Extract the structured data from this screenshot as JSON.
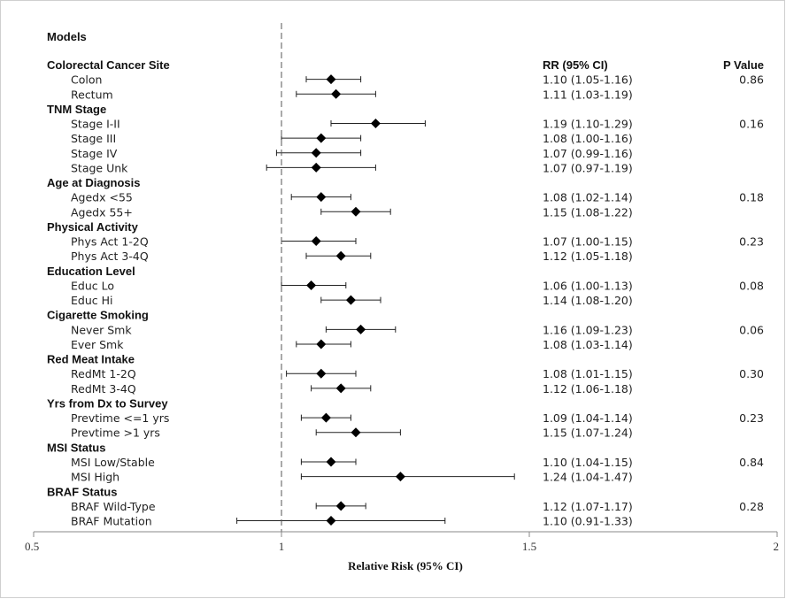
{
  "chart_data": {
    "type": "forest",
    "title": "Models",
    "xlabel": "Relative Risk (95% CI)",
    "xlim": [
      0.5,
      2
    ],
    "xticks": [
      "0.5",
      "1",
      "1.5",
      "2"
    ],
    "reference_line": 1,
    "col_rr_header": "RR (95% CI)",
    "col_p_header": "P Value",
    "groups": [
      {
        "name": "Colorectal Cancer Site",
        "p": "0.86",
        "rows": [
          {
            "label": "Colon",
            "rr": 1.1,
            "lo": 1.05,
            "hi": 1.16,
            "text": "1.10 (1.05-1.16)"
          },
          {
            "label": "Rectum",
            "rr": 1.11,
            "lo": 1.03,
            "hi": 1.19,
            "text": "1.11 (1.03-1.19)"
          }
        ]
      },
      {
        "name": "TNM Stage",
        "p": "0.16",
        "rows": [
          {
            "label": "Stage I-II",
            "rr": 1.19,
            "lo": 1.1,
            "hi": 1.29,
            "text": "1.19 (1.10-1.29)"
          },
          {
            "label": "Stage III",
            "rr": 1.08,
            "lo": 1.0,
            "hi": 1.16,
            "text": "1.08 (1.00-1.16)"
          },
          {
            "label": "Stage IV",
            "rr": 1.07,
            "lo": 0.99,
            "hi": 1.16,
            "text": "1.07 (0.99-1.16)"
          },
          {
            "label": "Stage Unk",
            "rr": 1.07,
            "lo": 0.97,
            "hi": 1.19,
            "text": "1.07 (0.97-1.19)"
          }
        ]
      },
      {
        "name": "Age at Diagnosis",
        "p": "0.18",
        "rows": [
          {
            "label": "Agedx <55",
            "rr": 1.08,
            "lo": 1.02,
            "hi": 1.14,
            "text": "1.08 (1.02-1.14)"
          },
          {
            "label": "Agedx 55+",
            "rr": 1.15,
            "lo": 1.08,
            "hi": 1.22,
            "text": "1.15 (1.08-1.22)"
          }
        ]
      },
      {
        "name": "Physical Activity",
        "p": "0.23",
        "rows": [
          {
            "label": "Phys Act 1-2Q",
            "rr": 1.07,
            "lo": 1.0,
            "hi": 1.15,
            "text": "1.07 (1.00-1.15)"
          },
          {
            "label": "Phys Act 3-4Q",
            "rr": 1.12,
            "lo": 1.05,
            "hi": 1.18,
            "text": "1.12 (1.05-1.18)"
          }
        ]
      },
      {
        "name": "Education Level",
        "p": "0.08",
        "rows": [
          {
            "label": "Educ Lo",
            "rr": 1.06,
            "lo": 1.0,
            "hi": 1.13,
            "text": "1.06 (1.00-1.13)"
          },
          {
            "label": "Educ Hi",
            "rr": 1.14,
            "lo": 1.08,
            "hi": 1.2,
            "text": "1.14 (1.08-1.20)"
          }
        ]
      },
      {
        "name": "Cigarette Smoking",
        "p": "0.06",
        "rows": [
          {
            "label": "Never Smk",
            "rr": 1.16,
            "lo": 1.09,
            "hi": 1.23,
            "text": "1.16 (1.09-1.23)"
          },
          {
            "label": "Ever Smk",
            "rr": 1.08,
            "lo": 1.03,
            "hi": 1.14,
            "text": "1.08 (1.03-1.14)"
          }
        ]
      },
      {
        "name": "Red Meat Intake",
        "p": "0.30",
        "rows": [
          {
            "label": "RedMt 1-2Q",
            "rr": 1.08,
            "lo": 1.01,
            "hi": 1.15,
            "text": "1.08 (1.01-1.15)"
          },
          {
            "label": "RedMt 3-4Q",
            "rr": 1.12,
            "lo": 1.06,
            "hi": 1.18,
            "text": "1.12 (1.06-1.18)"
          }
        ]
      },
      {
        "name": "Yrs from Dx to Survey",
        "p": "0.23",
        "rows": [
          {
            "label": "Prevtime <=1 yrs",
            "rr": 1.09,
            "lo": 1.04,
            "hi": 1.14,
            "text": "1.09 (1.04-1.14)"
          },
          {
            "label": "Prevtime >1 yrs",
            "rr": 1.15,
            "lo": 1.07,
            "hi": 1.24,
            "text": "1.15 (1.07-1.24)"
          }
        ]
      },
      {
        "name": "MSI Status",
        "p": "0.84",
        "rows": [
          {
            "label": "MSI Low/Stable",
            "rr": 1.1,
            "lo": 1.04,
            "hi": 1.15,
            "text": "1.10 (1.04-1.15)"
          },
          {
            "label": "MSI High",
            "rr": 1.24,
            "lo": 1.04,
            "hi": 1.47,
            "text": "1.24 (1.04-1.47)"
          }
        ]
      },
      {
        "name": "BRAF Status",
        "p": "0.28",
        "rows": [
          {
            "label": "BRAF Wild-Type",
            "rr": 1.12,
            "lo": 1.07,
            "hi": 1.17,
            "text": "1.12 (1.07-1.17)"
          },
          {
            "label": "BRAF Mutation",
            "rr": 1.1,
            "lo": 0.91,
            "hi": 1.33,
            "text": "1.10 (0.91-1.33)"
          }
        ]
      }
    ]
  }
}
